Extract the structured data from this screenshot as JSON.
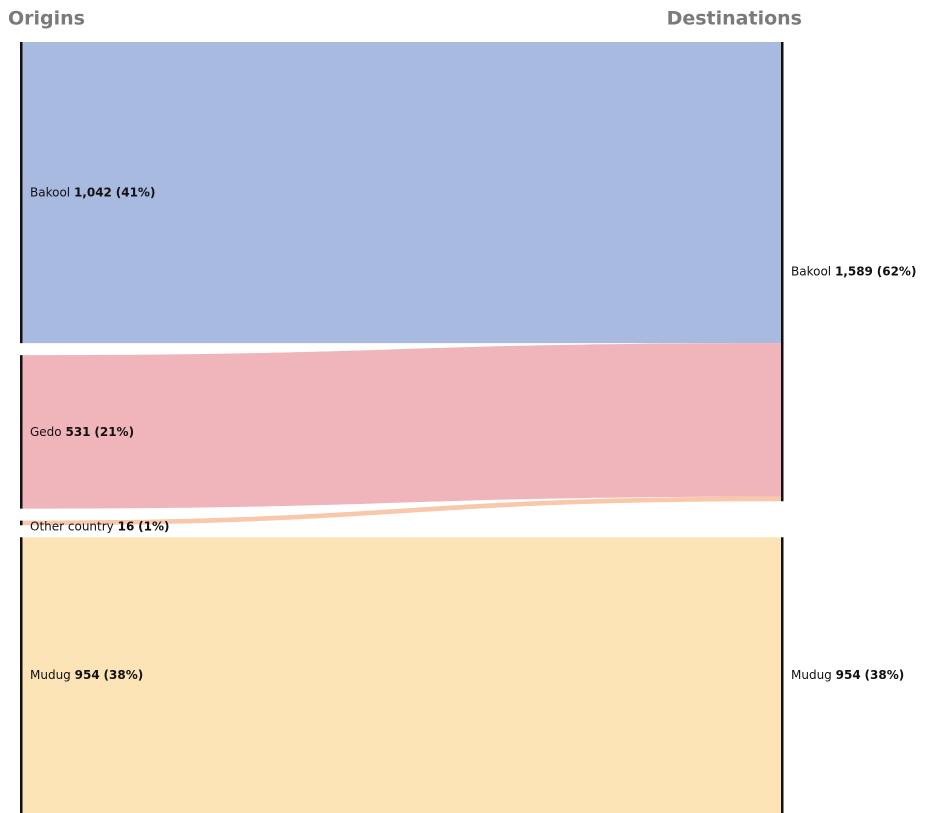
{
  "chart_data": {
    "type": "sankey",
    "left_title": "Origins",
    "right_title": "Destinations",
    "origins": {
      "names": [
        "Bakool",
        "Gedo",
        "Other country",
        "Mudug"
      ],
      "values": [
        1042,
        531,
        16,
        954
      ],
      "value_labels": [
        "1,042",
        "531",
        "16",
        "954"
      ],
      "percents": [
        41,
        21,
        1,
        38
      ],
      "percent_labels": [
        "(41%)",
        "(21%)",
        "(1%)",
        "(38%)"
      ],
      "colors": [
        "#a4b6de",
        "#eeb1b6",
        "#f9c4a4",
        "#fde3b2"
      ]
    },
    "destinations": {
      "names": [
        "Bakool",
        "Mudug"
      ],
      "values": [
        1589,
        954
      ],
      "value_labels": [
        "1,589",
        "954"
      ],
      "percents": [
        62,
        38
      ],
      "percent_labels": [
        "(62%)",
        "(38%)"
      ]
    },
    "links": [
      {
        "source": "Bakool",
        "target": "Bakool",
        "value": 1042
      },
      {
        "source": "Gedo",
        "target": "Bakool",
        "value": 531
      },
      {
        "source": "Other country",
        "target": "Bakool",
        "value": 16
      },
      {
        "source": "Mudug",
        "target": "Mudug",
        "value": 954
      }
    ]
  }
}
